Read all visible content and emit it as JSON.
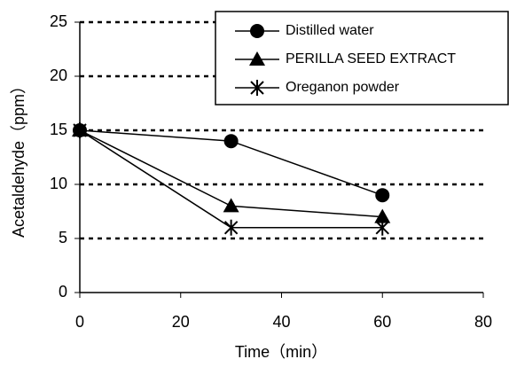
{
  "chart_data": {
    "type": "line",
    "x": [
      0,
      30,
      60
    ],
    "series": [
      {
        "name": "Distilled water",
        "color": "#000000",
        "marker": "circle",
        "values": [
          15,
          14,
          9
        ]
      },
      {
        "name": "PERILLA SEED EXTRACT",
        "color": "#000000",
        "marker": "triangle",
        "values": [
          15,
          8,
          7
        ]
      },
      {
        "name": "Oreganon powder",
        "color": "#000000",
        "marker": "asterisk",
        "values": [
          15,
          6,
          6
        ]
      }
    ],
    "x_label": "Time（min）",
    "y_label": "Acetaldehyde（ppm）",
    "xlim": [
      0,
      80
    ],
    "xticks": [
      0,
      20,
      40,
      60,
      80
    ],
    "ylim": [
      0,
      25
    ],
    "yticks": [
      0,
      5,
      10,
      15,
      20,
      25
    ],
    "grid": true,
    "legend": "upper right"
  }
}
